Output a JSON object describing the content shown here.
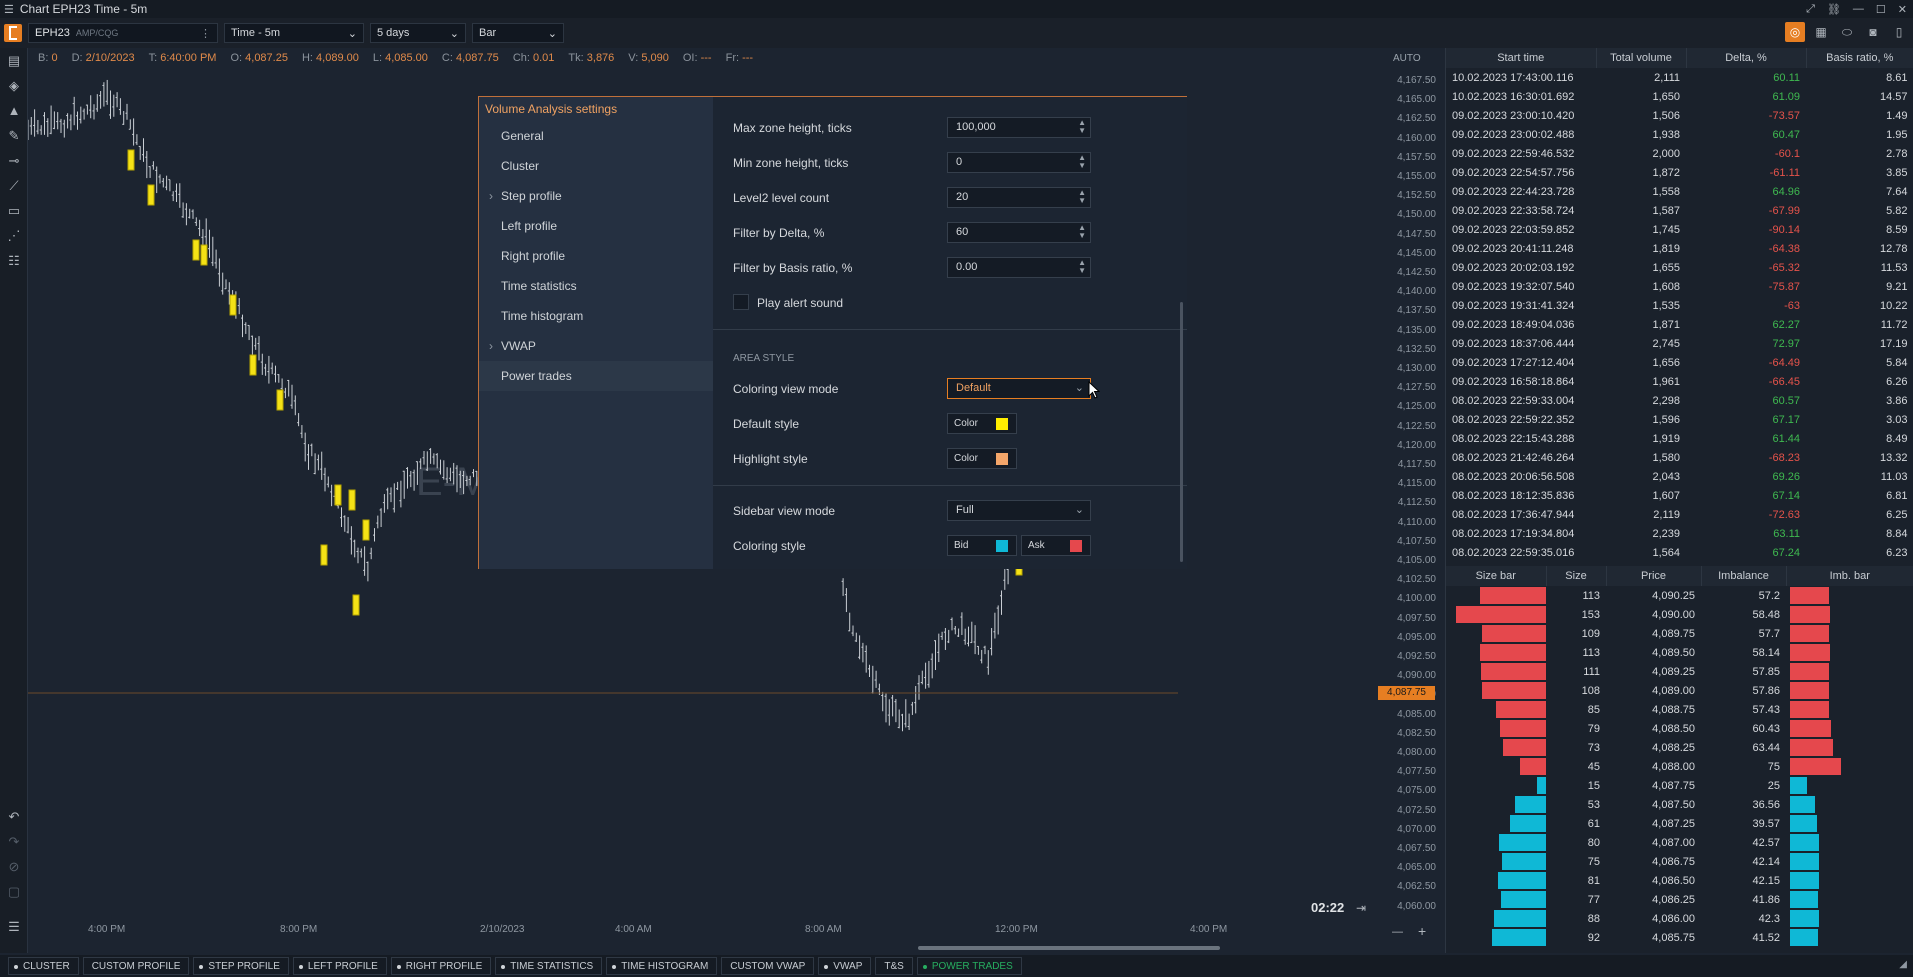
{
  "window": {
    "title": "Chart EPH23 Time - 5m"
  },
  "toolbar": {
    "symbol": "EPH23",
    "feed": "AMP/CQG",
    "timeframe": "Time - 5m",
    "range": "5 days",
    "chart_type": "Bar"
  },
  "ohlc": [
    {
      "k": "B:",
      "v": "0"
    },
    {
      "k": "D:",
      "v": "2/10/2023"
    },
    {
      "k": "T:",
      "v": "6:40:00 PM"
    },
    {
      "k": "O:",
      "v": "4,087.25"
    },
    {
      "k": "H:",
      "v": "4,089.00"
    },
    {
      "k": "L:",
      "v": "4,085.00"
    },
    {
      "k": "C:",
      "v": "4,087.75"
    },
    {
      "k": "Ch:",
      "v": "0.01"
    },
    {
      "k": "Tk:",
      "v": "3,876"
    },
    {
      "k": "V:",
      "v": "5,090"
    },
    {
      "k": "OI:",
      "v": "---"
    },
    {
      "k": "Fr:",
      "v": "---"
    }
  ],
  "chart": {
    "auto_label": "AUTO",
    "watermark": "E-M",
    "current_price": "4,087.75",
    "clock": "02:22",
    "price_ticks": [
      "4,167.50",
      "4,165.00",
      "4,162.50",
      "4,160.00",
      "4,157.50",
      "4,155.00",
      "4,152.50",
      "4,150.00",
      "4,147.50",
      "4,145.00",
      "4,142.50",
      "4,140.00",
      "4,137.50",
      "4,135.00",
      "4,132.50",
      "4,130.00",
      "4,127.50",
      "4,125.00",
      "4,122.50",
      "4,120.00",
      "4,117.50",
      "4,115.00",
      "4,112.50",
      "4,110.00",
      "4,107.50",
      "4,105.00",
      "4,102.50",
      "4,100.00",
      "4,097.50",
      "4,095.00",
      "4,092.50",
      "4,090.00",
      "4,087.50",
      "4,085.00",
      "4,082.50",
      "4,080.00",
      "4,077.50",
      "4,075.00",
      "4,072.50",
      "4,070.00",
      "4,067.50",
      "4,065.00",
      "4,062.50",
      "4,060.00"
    ],
    "time_ticks": [
      {
        "label": "4:00 PM",
        "pos": 88
      },
      {
        "label": "8:00 PM",
        "pos": 280
      },
      {
        "label": "2/10/2023",
        "pos": 480
      },
      {
        "label": "4:00 AM",
        "pos": 615
      },
      {
        "label": "8:00 AM",
        "pos": 805
      },
      {
        "label": "12:00 PM",
        "pos": 995
      },
      {
        "label": "4:00 PM",
        "pos": 1190
      }
    ]
  },
  "dialog": {
    "title": "Volume Analysis settings",
    "nav": [
      {
        "label": "General",
        "sub": false
      },
      {
        "label": "Cluster",
        "sub": false
      },
      {
        "label": "Step profile",
        "sub": true
      },
      {
        "label": "Left profile",
        "sub": false
      },
      {
        "label": "Right profile",
        "sub": false
      },
      {
        "label": "Time statistics",
        "sub": false
      },
      {
        "label": "Time histogram",
        "sub": false
      },
      {
        "label": "VWAP",
        "sub": true
      },
      {
        "label": "Power trades",
        "sub": false
      }
    ],
    "max_zone_label": "Max zone height, ticks",
    "max_zone_value": "100,000",
    "min_zone_label": "Min zone height, ticks",
    "min_zone_value": "0",
    "level2_label": "Level2 level count",
    "level2_value": "20",
    "filter_delta_label": "Filter by Delta, %",
    "filter_delta_value": "60",
    "filter_basis_label": "Filter by Basis ratio, %",
    "filter_basis_value": "0.00",
    "play_alert_label": "Play alert sound",
    "area_style_label": "AREA STYLE",
    "coloring_view_label": "Coloring view mode",
    "coloring_view_value": "Default",
    "default_style_label": "Default style",
    "highlight_style_label": "Highlight style",
    "color_label": "Color",
    "sidebar_view_label": "Sidebar view mode",
    "sidebar_view_value": "Full",
    "coloring_style_label": "Coloring style",
    "bid_label": "Bid",
    "ask_label": "Ask",
    "colors": {
      "default": "#ffee00",
      "highlight": "#f4a66a",
      "bid": "#0fb8d6",
      "ask": "#e5484d"
    }
  },
  "trades": {
    "headers": [
      "Start time",
      "Total volume",
      "Delta, %",
      "Basis ratio, %"
    ],
    "rows": [
      [
        "10.02.2023 17:43:00.116",
        "2,111",
        "60.11",
        "8.61"
      ],
      [
        "10.02.2023 16:30:01.692",
        "1,650",
        "61.09",
        "14.57"
      ],
      [
        "09.02.2023 23:00:10.420",
        "1,506",
        "-73.57",
        "1.49"
      ],
      [
        "09.02.2023 23:00:02.488",
        "1,938",
        "60.47",
        "1.95"
      ],
      [
        "09.02.2023 22:59:46.532",
        "2,000",
        "-60.1",
        "2.78"
      ],
      [
        "09.02.2023 22:54:57.756",
        "1,872",
        "-61.11",
        "3.85"
      ],
      [
        "09.02.2023 22:44:23.728",
        "1,558",
        "64.96",
        "7.64"
      ],
      [
        "09.02.2023 22:33:58.724",
        "1,587",
        "-67.99",
        "5.82"
      ],
      [
        "09.02.2023 22:03:59.852",
        "1,745",
        "-90.14",
        "8.59"
      ],
      [
        "09.02.2023 20:41:11.248",
        "1,819",
        "-64.38",
        "12.78"
      ],
      [
        "09.02.2023 20:02:03.192",
        "1,655",
        "-65.32",
        "11.53"
      ],
      [
        "09.02.2023 19:32:07.540",
        "1,608",
        "-75.87",
        "9.21"
      ],
      [
        "09.02.2023 19:31:41.324",
        "1,535",
        "-63",
        "10.22"
      ],
      [
        "09.02.2023 18:49:04.036",
        "1,871",
        "62.27",
        "11.72"
      ],
      [
        "09.02.2023 18:37:06.444",
        "2,745",
        "72.97",
        "17.19"
      ],
      [
        "09.02.2023 17:27:12.404",
        "1,656",
        "-64.49",
        "5.84"
      ],
      [
        "09.02.2023 16:58:18.864",
        "1,961",
        "-66.45",
        "6.26"
      ],
      [
        "08.02.2023 22:59:33.004",
        "2,298",
        "60.57",
        "3.86"
      ],
      [
        "08.02.2023 22:59:22.352",
        "1,596",
        "67.17",
        "3.03"
      ],
      [
        "08.02.2023 22:15:43.288",
        "1,919",
        "61.44",
        "8.49"
      ],
      [
        "08.02.2023 21:42:46.264",
        "1,580",
        "-68.23",
        "13.32"
      ],
      [
        "08.02.2023 20:06:56.508",
        "2,043",
        "69.26",
        "11.03"
      ],
      [
        "08.02.2023 18:12:35.836",
        "1,607",
        "67.14",
        "6.81"
      ],
      [
        "08.02.2023 17:36:47.944",
        "2,119",
        "-72.63",
        "6.25"
      ],
      [
        "08.02.2023 17:19:34.804",
        "2,239",
        "63.11",
        "8.84"
      ],
      [
        "08.02.2023 22:59:35.016",
        "1,564",
        "67.24",
        "6.23"
      ]
    ]
  },
  "imbalance": {
    "headers": [
      "Size bar",
      "Size",
      "Price",
      "Imbalance",
      "Imb. bar"
    ],
    "rows": [
      {
        "size": "113",
        "price": "4,090.25",
        "imb": "57.2",
        "side": "ask"
      },
      {
        "size": "153",
        "price": "4,090.00",
        "imb": "58.48",
        "side": "ask"
      },
      {
        "size": "109",
        "price": "4,089.75",
        "imb": "57.7",
        "side": "ask"
      },
      {
        "size": "113",
        "price": "4,089.50",
        "imb": "58.14",
        "side": "ask"
      },
      {
        "size": "111",
        "price": "4,089.25",
        "imb": "57.85",
        "side": "ask"
      },
      {
        "size": "108",
        "price": "4,089.00",
        "imb": "57.86",
        "side": "ask"
      },
      {
        "size": "85",
        "price": "4,088.75",
        "imb": "57.43",
        "side": "ask"
      },
      {
        "size": "79",
        "price": "4,088.50",
        "imb": "60.43",
        "side": "ask"
      },
      {
        "size": "73",
        "price": "4,088.25",
        "imb": "63.44",
        "side": "ask"
      },
      {
        "size": "45",
        "price": "4,088.00",
        "imb": "75",
        "side": "ask"
      },
      {
        "size": "15",
        "price": "4,087.75",
        "imb": "25",
        "side": "bid"
      },
      {
        "size": "53",
        "price": "4,087.50",
        "imb": "36.56",
        "side": "bid"
      },
      {
        "size": "61",
        "price": "4,087.25",
        "imb": "39.57",
        "side": "bid"
      },
      {
        "size": "80",
        "price": "4,087.00",
        "imb": "42.57",
        "side": "bid"
      },
      {
        "size": "75",
        "price": "4,086.75",
        "imb": "42.14",
        "side": "bid"
      },
      {
        "size": "81",
        "price": "4,086.50",
        "imb": "42.15",
        "side": "bid"
      },
      {
        "size": "77",
        "price": "4,086.25",
        "imb": "41.86",
        "side": "bid"
      },
      {
        "size": "88",
        "price": "4,086.00",
        "imb": "42.3",
        "side": "bid"
      },
      {
        "size": "92",
        "price": "4,085.75",
        "imb": "41.52",
        "side": "bid"
      }
    ]
  },
  "bottom_tabs": [
    {
      "label": "CLUSTER",
      "active": false,
      "dot": true
    },
    {
      "label": "CUSTOM PROFILE",
      "active": false,
      "dot": false
    },
    {
      "label": "STEP PROFILE",
      "active": false,
      "dot": true
    },
    {
      "label": "LEFT PROFILE",
      "active": false,
      "dot": true
    },
    {
      "label": "RIGHT PROFILE",
      "active": false,
      "dot": true
    },
    {
      "label": "TIME STATISTICS",
      "active": false,
      "dot": true
    },
    {
      "label": "TIME HISTOGRAM",
      "active": false,
      "dot": true
    },
    {
      "label": "CUSTOM VWAP",
      "active": false,
      "dot": false
    },
    {
      "label": "VWAP",
      "active": false,
      "dot": true
    },
    {
      "label": "T&S",
      "active": false,
      "dot": false
    },
    {
      "label": "POWER TRADES",
      "active": true,
      "dot": true
    }
  ]
}
